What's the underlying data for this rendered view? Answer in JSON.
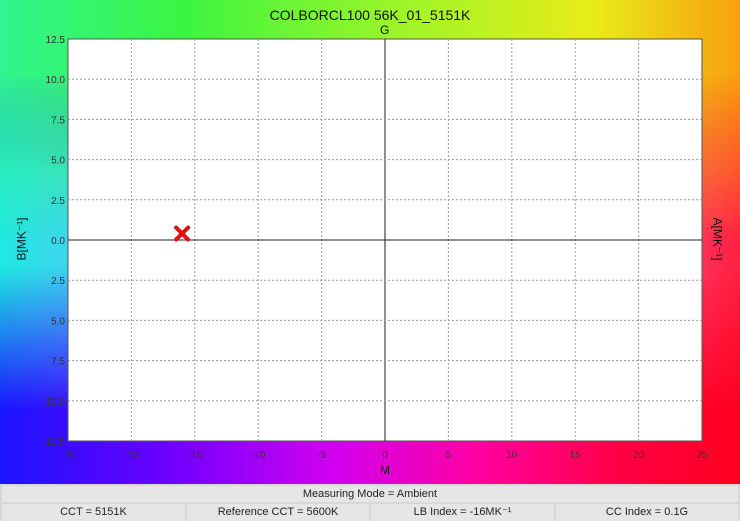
{
  "chart_data": {
    "type": "scatter",
    "title": "COLBORCL100 56K_01_5151K",
    "top_label": "G",
    "xlabel": "M",
    "ylabel_left": "B[MK⁻¹]",
    "ylabel_right": "A[MK⁻¹]",
    "xlim": [
      -25,
      25
    ],
    "ylim": [
      -12.5,
      12.5
    ],
    "x_ticks": [
      "-25",
      "-20",
      "-15",
      "-10",
      "-5",
      "0",
      "5",
      "10",
      "15",
      "20",
      "25"
    ],
    "y_ticks": [
      "12.5",
      "10.0",
      "7.5",
      "5.0",
      "2.5",
      "0.0",
      "2.5",
      "5.0",
      "7.5",
      "10.0",
      "12.5"
    ],
    "grid": true,
    "points": [
      {
        "x": -16,
        "y": 0.4,
        "marker": "x",
        "color": "#e01010"
      }
    ]
  },
  "status": {
    "mode": "Measuring Mode = Ambient",
    "cct": "CCT = 5151K",
    "ref_cct": "Reference CCT = 5600K",
    "lb_index": "LB Index = -16MK⁻¹",
    "cc_index": "CC Index = 0.1G"
  }
}
